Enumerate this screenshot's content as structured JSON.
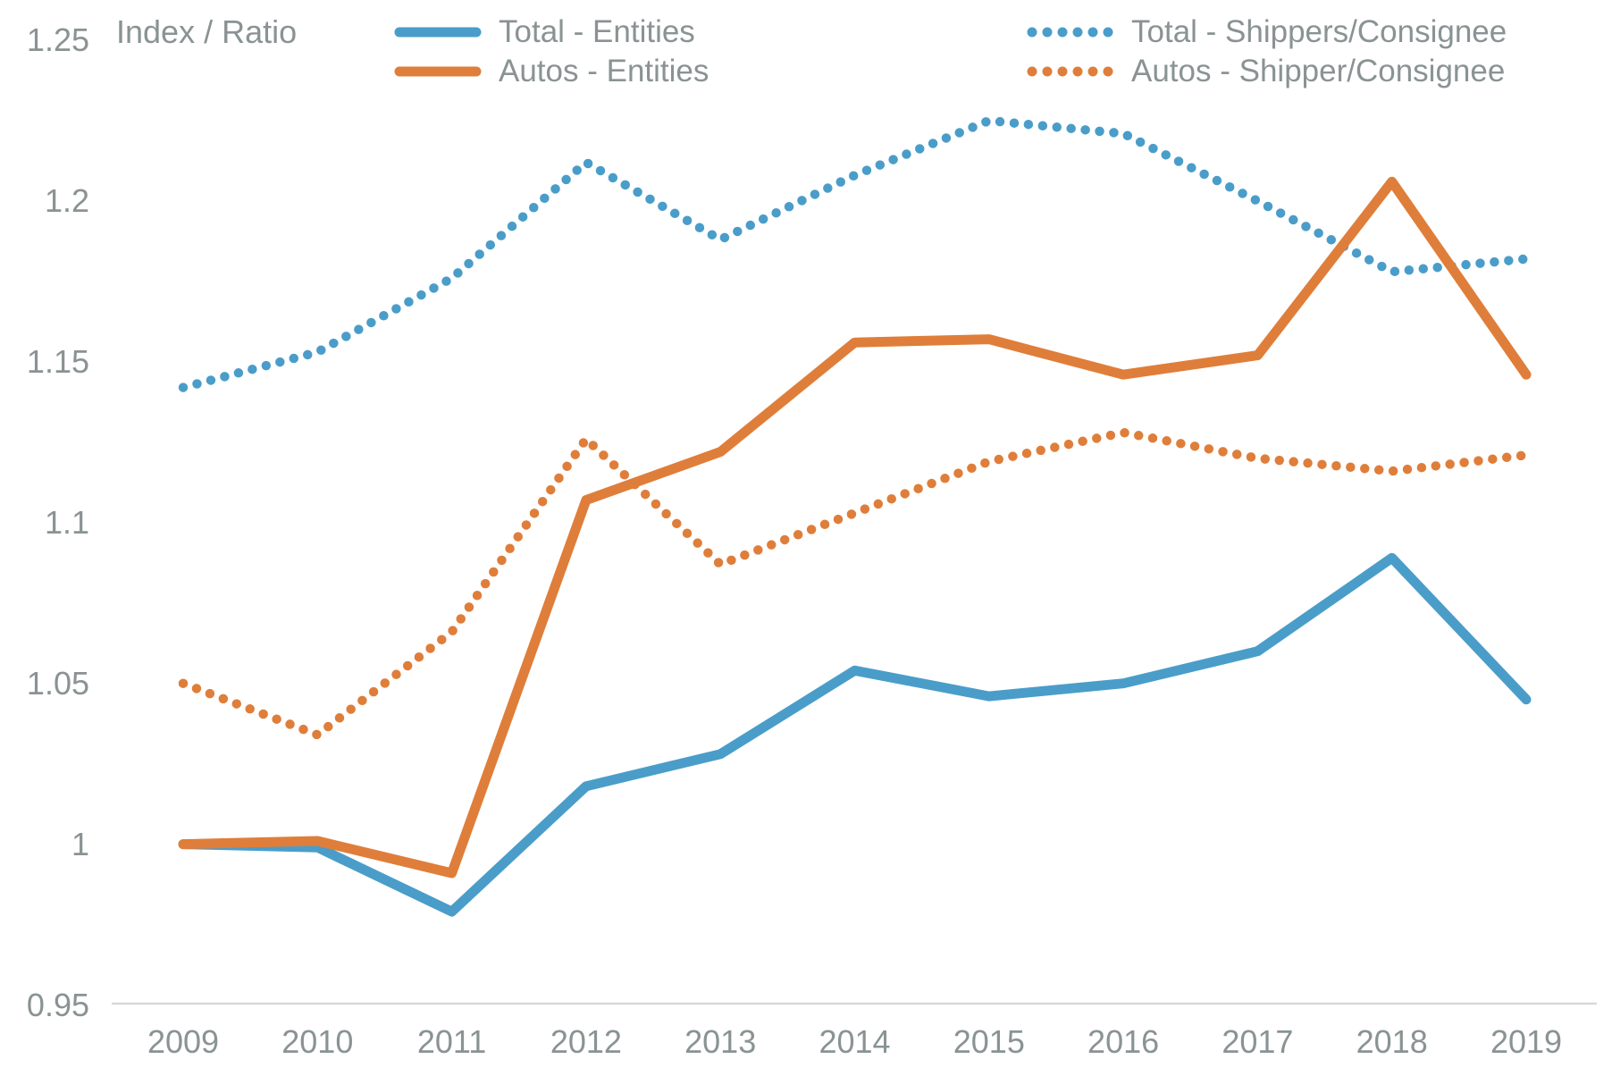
{
  "colors": {
    "blue": "#4A9DC9",
    "orange": "#DF7E3A",
    "text_gray": "#8A9394",
    "axis_gray": "#D8D8D8"
  },
  "legend": [
    {
      "label": "Total - Entities",
      "style": "solid",
      "color": "#4A9DC9"
    },
    {
      "label": "Autos - Entities",
      "style": "solid",
      "color": "#DF7E3A"
    },
    {
      "label": "Total - Shippers/Consignee",
      "style": "dotted",
      "color": "#4A9DC9"
    },
    {
      "label": "Autos - Shipper/Consignee",
      "style": "dotted",
      "color": "#DF7E3A"
    }
  ],
  "chart_data": {
    "type": "line",
    "title": "",
    "ylabel": "Index / Ratio",
    "xlabel": "",
    "grid": false,
    "legend_position": "top",
    "ylim": [
      0.95,
      1.25
    ],
    "yticks": [
      1.25,
      1.2,
      1.15,
      1.1,
      1.05,
      1,
      0.95
    ],
    "ytick_labels": [
      "1.25",
      "1.2",
      "1.15",
      "1.1",
      "1.05",
      "1",
      "0.95"
    ],
    "x": [
      2009,
      2010,
      2011,
      2012,
      2013,
      2014,
      2015,
      2016,
      2017,
      2018,
      2019
    ],
    "series": [
      {
        "name": "Total - Entities",
        "style": "solid",
        "color": "#4A9DC9",
        "values": [
          1.0,
          0.999,
          0.979,
          1.018,
          1.028,
          1.054,
          1.046,
          1.05,
          1.06,
          1.089,
          1.045
        ]
      },
      {
        "name": "Autos - Entities",
        "style": "solid",
        "color": "#DF7E3A",
        "values": [
          1.0,
          1.001,
          0.991,
          1.107,
          1.122,
          1.156,
          1.157,
          1.146,
          1.152,
          1.206,
          1.146
        ]
      },
      {
        "name": "Total - Shippers/Consignee",
        "style": "dotted",
        "color": "#4A9DC9",
        "values": [
          1.142,
          1.153,
          1.176,
          1.212,
          1.188,
          1.208,
          1.225,
          1.221,
          1.2,
          1.178,
          1.182
        ]
      },
      {
        "name": "Autos - Shipper/Consignee",
        "style": "dotted",
        "color": "#DF7E3A",
        "values": [
          1.05,
          1.034,
          1.066,
          1.126,
          1.087,
          1.103,
          1.119,
          1.128,
          1.12,
          1.116,
          1.121
        ]
      }
    ]
  }
}
